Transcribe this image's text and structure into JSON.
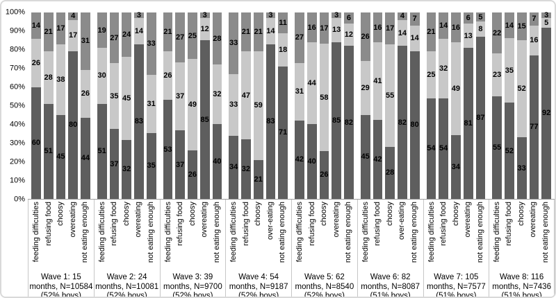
{
  "chart_data": {
    "type": "bar",
    "stacked": true,
    "percent_scale": true,
    "title": "",
    "xlabel": "",
    "ylabel": "",
    "ylim": [
      0,
      100
    ],
    "grid": false,
    "legend": "none",
    "y_ticks": [
      "100%",
      "90%",
      "80%",
      "70%",
      "60%",
      "50%",
      "40%",
      "30%",
      "20%",
      "10%",
      "0%"
    ],
    "segment_order_bottom_to_top": [
      "dark-bottom",
      "light-middle",
      "medium-top"
    ],
    "colors": {
      "bottom": "#5e5e5e",
      "middle": "#c8c8c8",
      "top": "#8b8b8b",
      "separator": "#c6c6c6",
      "baseline": "#9e9e9e",
      "frame": "#d9d9d9",
      "text": "#000000"
    },
    "groups": [
      {
        "label": "Wave 1: 15 months, N=10584 (52% boys)",
        "categories": [
          "feeding difficulties",
          "refusing food",
          "choosy",
          "overeating",
          "not eating enough"
        ],
        "values": [
          [
            60,
            26,
            14
          ],
          [
            51,
            28,
            21
          ],
          [
            45,
            38,
            17
          ],
          [
            80,
            17,
            4
          ],
          [
            44,
            26,
            31
          ]
        ]
      },
      {
        "label": "Wave 2: 24 months, N=10081 (52% boys)",
        "categories": [
          "feeding difficulties",
          "refusing food",
          "choosy",
          "overeating",
          "not eating enough"
        ],
        "values": [
          [
            51,
            30,
            19
          ],
          [
            37,
            35,
            27
          ],
          [
            32,
            45,
            24
          ],
          [
            83,
            14,
            3
          ],
          [
            35,
            31,
            33
          ]
        ]
      },
      {
        "label": "Wave 3: 39 months, N=9700 (52% boys)",
        "categories": [
          "feeding difficulties",
          "refusing food",
          "choosy",
          "overeating",
          "not eating enough"
        ],
        "values": [
          [
            53,
            26,
            21
          ],
          [
            37,
            37,
            27
          ],
          [
            26,
            49,
            25
          ],
          [
            85,
            12,
            3
          ],
          [
            40,
            32,
            28
          ]
        ]
      },
      {
        "label": "Wave 4: 54 months, N=9187 (52% boys)",
        "categories": [
          "feeding difficulties",
          "refusing food",
          "choosy",
          "over-eating",
          "not eating enough"
        ],
        "values": [
          [
            34,
            33,
            33
          ],
          [
            32,
            47,
            21
          ],
          [
            21,
            59,
            21
          ],
          [
            83,
            14,
            3
          ],
          [
            71,
            18,
            11
          ]
        ]
      },
      {
        "label": "Wave 5: 62 months, N=8540 (52% boys)",
        "categories": [
          "feeding difficulties",
          "refusing food",
          "choosy",
          "overeating",
          "not eating enough"
        ],
        "values": [
          [
            42,
            31,
            27
          ],
          [
            40,
            44,
            16
          ],
          [
            26,
            58,
            17
          ],
          [
            85,
            13,
            3
          ],
          [
            82,
            12,
            6
          ]
        ]
      },
      {
        "label": "Wave 6: 82 months, N=8087 (51% boys)",
        "categories": [
          "feeding difficulties",
          "refusing food",
          "choosy",
          "over-eating",
          "not eating enough"
        ],
        "values": [
          [
            45,
            29,
            26
          ],
          [
            42,
            41,
            16
          ],
          [
            28,
            55,
            17
          ],
          [
            82,
            14,
            4
          ],
          [
            80,
            14,
            7
          ]
        ]
      },
      {
        "label": "Wave 7: 105 months, N=7577 (51% boys)",
        "categories": [
          "feeding difficulties",
          "refusing food",
          "choosy",
          "overeating",
          "not eating enough"
        ],
        "values": [
          [
            54,
            25,
            21
          ],
          [
            54,
            32,
            14
          ],
          [
            34,
            49,
            16
          ],
          [
            81,
            13,
            6
          ],
          [
            87,
            8,
            5
          ]
        ]
      },
      {
        "label": "Wave 8: 116 months, N=7436 (51% boys)",
        "categories": [
          "feeding difficulties",
          "refusing food",
          "choosy",
          "overeating",
          "not eating enough"
        ],
        "values": [
          [
            55,
            23,
            22
          ],
          [
            52,
            35,
            14
          ],
          [
            33,
            52,
            15
          ],
          [
            77,
            16,
            7
          ],
          [
            92,
            5,
            3
          ]
        ]
      }
    ]
  }
}
